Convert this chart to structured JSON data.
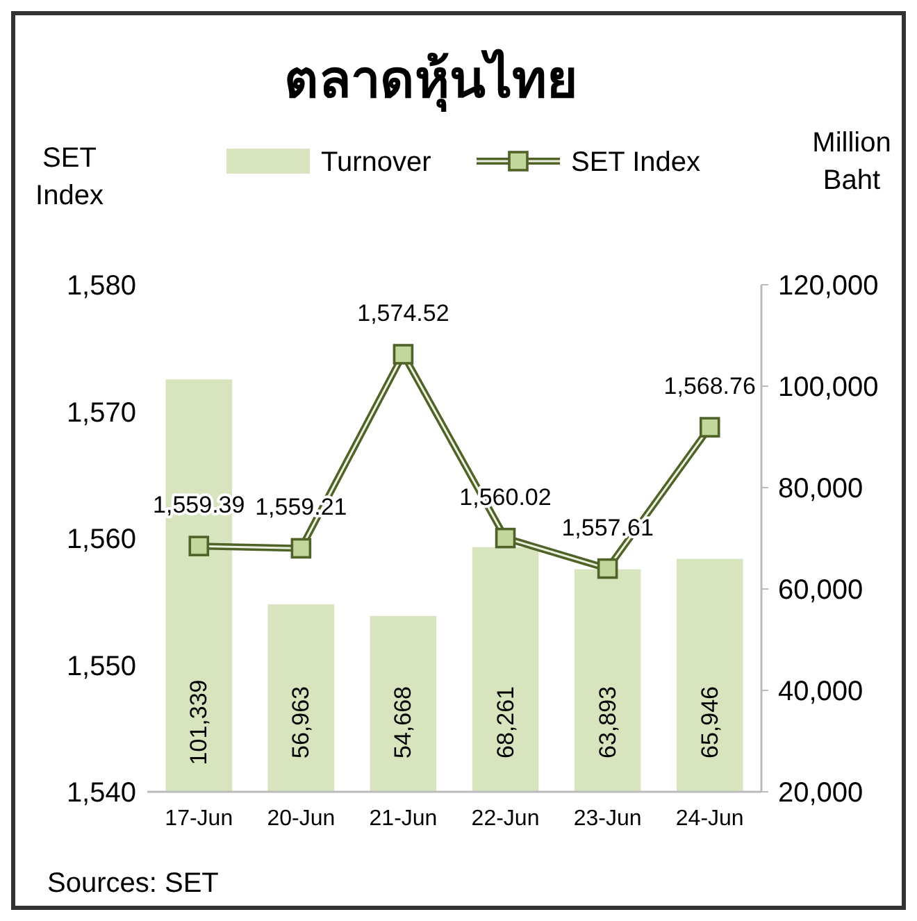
{
  "chart_data": {
    "type": "bar",
    "title": "ตลาดหุ้นไทย",
    "ylabel": "SET Index",
    "y2label": "Million Baht",
    "categories": [
      "17-Jun",
      "20-Jun",
      "21-Jun",
      "22-Jun",
      "23-Jun",
      "24-Jun"
    ],
    "series": [
      {
        "name": "Turnover",
        "axis": "y2",
        "color": "#d7e4bd",
        "values": [
          101339,
          56963,
          54668,
          68261,
          63893,
          65946
        ],
        "value_labels": [
          "101,339",
          "56,963",
          "54,668",
          "68,261",
          "63,893",
          "65,946"
        ]
      },
      {
        "name": "SET Index",
        "type": "line",
        "axis": "y",
        "color": "#4f6228",
        "values": [
          1559.39,
          1559.21,
          1574.52,
          1560.02,
          1557.61,
          1568.76
        ],
        "value_labels": [
          "1,559.39",
          "1,559.21",
          "1,574.52",
          "1,560.02",
          "1,557.61",
          "1,568.76"
        ]
      }
    ],
    "ylim": [
      1540,
      1580
    ],
    "yticks": [
      {
        "value": 1540,
        "label": "1,540"
      },
      {
        "value": 1550,
        "label": "1,550"
      },
      {
        "value": 1560,
        "label": "1,560"
      },
      {
        "value": 1570,
        "label": "1,570"
      },
      {
        "value": 1580,
        "label": "1,580"
      }
    ],
    "y2lim": [
      20000,
      120000
    ],
    "y2ticks": [
      {
        "value": 20000,
        "label": "20,000"
      },
      {
        "value": 40000,
        "label": "40,000"
      },
      {
        "value": 60000,
        "label": "60,000"
      },
      {
        "value": 80000,
        "label": "80,000"
      },
      {
        "value": 100000,
        "label": "100,000"
      },
      {
        "value": 120000,
        "label": "120,000"
      }
    ],
    "legend": "top",
    "marker": "square",
    "grid": false,
    "annotations": [
      "Sources: SET"
    ]
  }
}
